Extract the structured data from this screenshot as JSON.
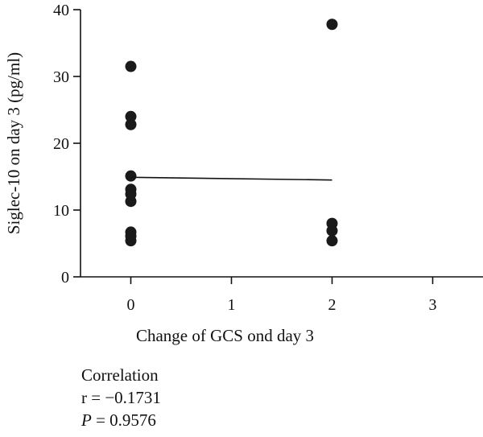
{
  "chart_data": {
    "type": "scatter",
    "title": "",
    "xlabel": "Change of GCS ond day 3",
    "ylabel": "Siglec-10 on day 3 (pg/ml)",
    "xlim": [
      -0.5,
      3.5
    ],
    "ylim": [
      0,
      40
    ],
    "xticks": [
      "0",
      "1",
      "2",
      "3"
    ],
    "yticks": [
      "0",
      "10",
      "20",
      "30",
      "40"
    ],
    "grid": false,
    "legend": "none",
    "point_color": "#1a1a1a",
    "points": [
      {
        "x": 0,
        "y": 31.5
      },
      {
        "x": 0,
        "y": 24.0
      },
      {
        "x": 0,
        "y": 22.8
      },
      {
        "x": 0,
        "y": 15.1
      },
      {
        "x": 0,
        "y": 13.1
      },
      {
        "x": 0,
        "y": 12.4
      },
      {
        "x": 0,
        "y": 11.3
      },
      {
        "x": 0,
        "y": 6.7
      },
      {
        "x": 0,
        "y": 6.1
      },
      {
        "x": 0,
        "y": 5.4
      },
      {
        "x": 2,
        "y": 37.8
      },
      {
        "x": 2,
        "y": 8.0
      },
      {
        "x": 2,
        "y": 6.9
      },
      {
        "x": 2,
        "y": 5.4
      }
    ],
    "fit_line": {
      "x": [
        0,
        2
      ],
      "y": [
        14.9,
        14.5
      ]
    }
  },
  "stats": {
    "heading": "Correlation",
    "r_line": "r = −0.1731",
    "p_symbol": "P",
    "p_rest": " = 0.9576"
  }
}
